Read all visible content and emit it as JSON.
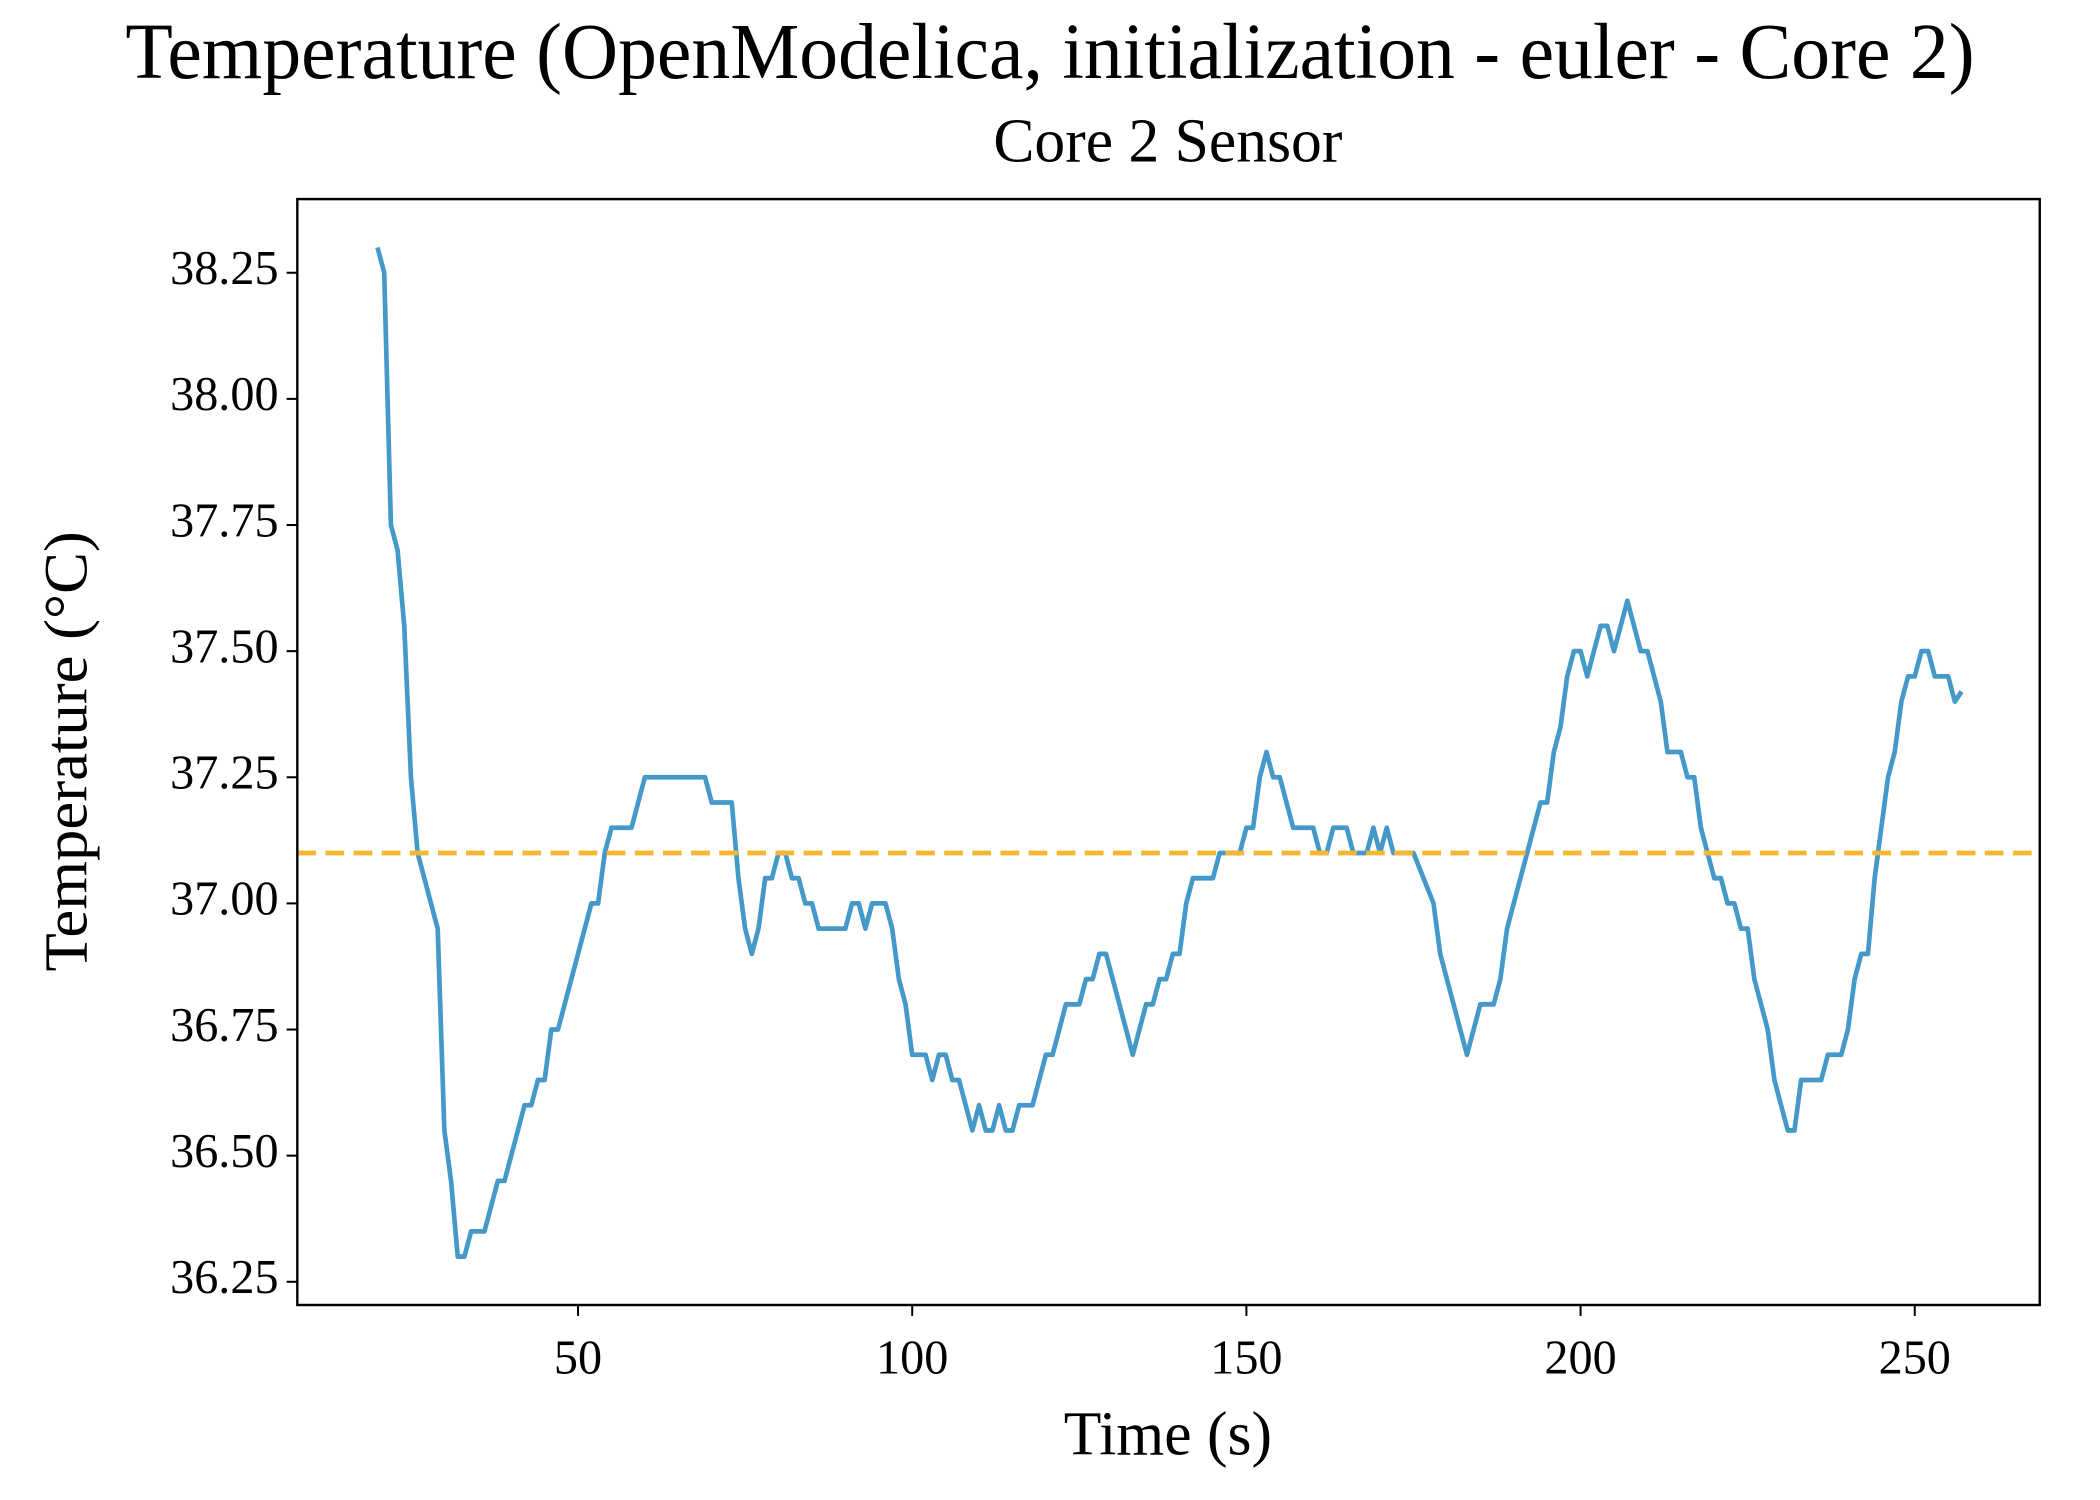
{
  "chart_data": {
    "type": "line",
    "title": "Temperature (OpenModelica, initialization - euler - Core 2)",
    "subtitle": "Core 2 Sensor",
    "x_label": "Time (s)",
    "y_label": "Temperature (°C)",
    "x": [
      20,
      21,
      22,
      23,
      24,
      25,
      26,
      29,
      30,
      31,
      32,
      33,
      34,
      36,
      38,
      39,
      42,
      43,
      44,
      45,
      46,
      47,
      52,
      53,
      54,
      55,
      58,
      60,
      69,
      70,
      73,
      74,
      75,
      76,
      77,
      78,
      79,
      80,
      81,
      82,
      83,
      84,
      85,
      86,
      90,
      91,
      92,
      93,
      94,
      96,
      97,
      98,
      99,
      100,
      102,
      103,
      104,
      105,
      106,
      107,
      109,
      110,
      111,
      112,
      113,
      114,
      115,
      116,
      118,
      120,
      121,
      123,
      125,
      126,
      127,
      128,
      129,
      133,
      135,
      136,
      137,
      138,
      139,
      140,
      141,
      142,
      145,
      146,
      149,
      150,
      151,
      152,
      153,
      154,
      155,
      157,
      160,
      161,
      162,
      163,
      165,
      166,
      168,
      169,
      170,
      171,
      172,
      175,
      178,
      179,
      183,
      185,
      187,
      188,
      189,
      193,
      194,
      195,
      196,
      197,
      198,
      199,
      200,
      201,
      203,
      204,
      205,
      207,
      209,
      210,
      212,
      213,
      215,
      216,
      217,
      218,
      219,
      220,
      221,
      222,
      223,
      224,
      225,
      226,
      228,
      229,
      231,
      232,
      233,
      236,
      237,
      239,
      240,
      241,
      242,
      243,
      244,
      245,
      246,
      247,
      248,
      249,
      250,
      251,
      252,
      253,
      255,
      256,
      257
    ],
    "values": [
      38.3,
      38.25,
      37.75,
      37.7,
      37.55,
      37.25,
      37.1,
      36.95,
      36.55,
      36.45,
      36.3,
      36.3,
      36.35,
      36.35,
      36.45,
      36.45,
      36.6,
      36.6,
      36.65,
      36.65,
      36.75,
      36.75,
      37.0,
      37.0,
      37.1,
      37.15,
      37.15,
      37.25,
      37.25,
      37.2,
      37.2,
      37.05,
      36.95,
      36.9,
      36.95,
      37.05,
      37.05,
      37.1,
      37.1,
      37.05,
      37.05,
      37.0,
      37.0,
      36.95,
      36.95,
      37.0,
      37.0,
      36.95,
      37.0,
      37.0,
      36.95,
      36.85,
      36.8,
      36.7,
      36.7,
      36.65,
      36.7,
      36.7,
      36.65,
      36.65,
      36.55,
      36.6,
      36.55,
      36.55,
      36.6,
      36.55,
      36.55,
      36.6,
      36.6,
      36.7,
      36.7,
      36.8,
      36.8,
      36.85,
      36.85,
      36.9,
      36.9,
      36.7,
      36.8,
      36.8,
      36.85,
      36.85,
      36.9,
      36.9,
      37.0,
      37.05,
      37.05,
      37.1,
      37.1,
      37.15,
      37.15,
      37.25,
      37.3,
      37.25,
      37.25,
      37.15,
      37.15,
      37.1,
      37.1,
      37.15,
      37.15,
      37.1,
      37.1,
      37.15,
      37.1,
      37.15,
      37.1,
      37.1,
      37.0,
      36.9,
      36.7,
      36.8,
      36.8,
      36.85,
      36.95,
      37.15,
      37.2,
      37.2,
      37.3,
      37.35,
      37.45,
      37.5,
      37.5,
      37.45,
      37.55,
      37.55,
      37.5,
      37.6,
      37.5,
      37.5,
      37.4,
      37.3,
      37.3,
      37.25,
      37.25,
      37.15,
      37.1,
      37.05,
      37.05,
      37.0,
      37.0,
      36.95,
      36.95,
      36.85,
      36.75,
      36.65,
      36.55,
      36.55,
      36.65,
      36.65,
      36.7,
      36.7,
      36.75,
      36.85,
      36.9,
      36.9,
      37.05,
      37.15,
      37.25,
      37.3,
      37.4,
      37.45,
      37.45,
      37.5,
      37.5,
      37.45,
      37.45,
      37.4,
      37.42
    ],
    "color": "#4499c9",
    "reference_value": 37.1,
    "reference_color": "#f5b731",
    "xlim": [
      8,
      268.7
    ],
    "ylim": [
      36.204,
      38.396
    ],
    "xticks": [
      50,
      100,
      150,
      200,
      250
    ],
    "yticks": [
      38.25,
      {
        "value": 38,
        "label": "38.00"
      },
      37.75,
      {
        "value": 37.5,
        "label": "37.50"
      },
      37.25,
      {
        "value": 37,
        "label": "37.00"
      },
      36.75,
      {
        "value": 36.5,
        "label": "36.50"
      },
      36.25
    ]
  }
}
